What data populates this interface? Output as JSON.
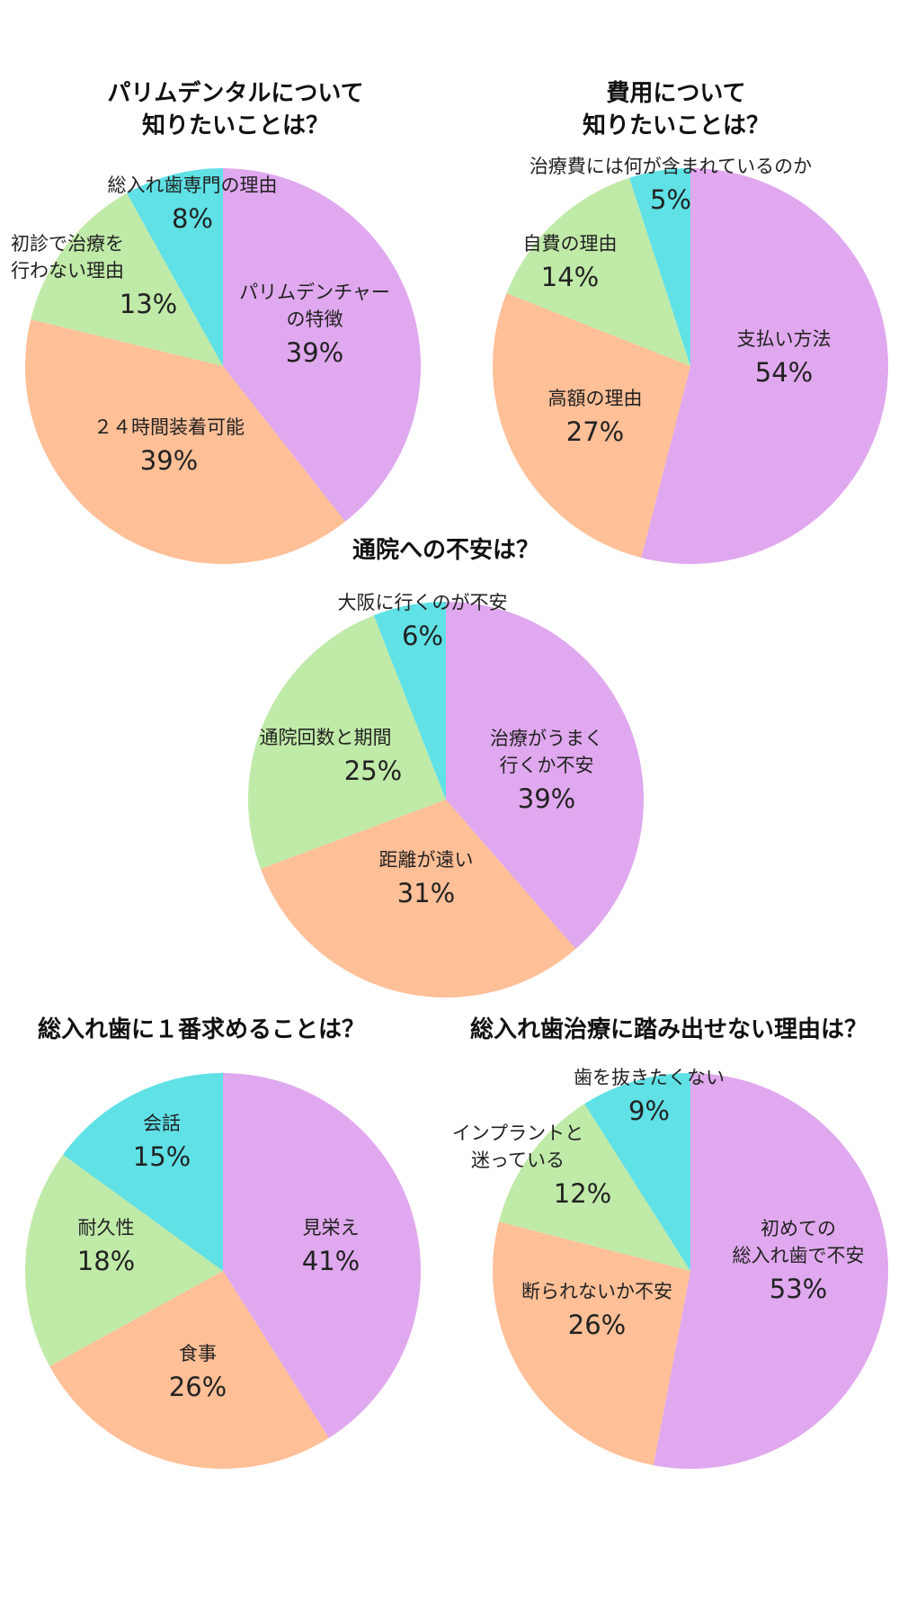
{
  "colors": {
    "purple": "#e0a8ee",
    "orange": "#ffbf97",
    "green": "#c0eaa8",
    "cyan": "#5fe1e6"
  },
  "chart_data": [
    {
      "type": "pie",
      "title": [
        "パリムデンタルについて",
        "知りたいことは？"
      ],
      "slices": [
        {
          "label": [
            "パリムデンチャー",
            "の特徴"
          ],
          "value": 39,
          "pct_label": "39%",
          "color": "#e0a8ee"
        },
        {
          "label": [
            "２４時間装着可能"
          ],
          "value": 39,
          "pct_label": "39%",
          "color": "#ffbf97"
        },
        {
          "label": [
            "初診で治療を",
            "行わない理由"
          ],
          "value": 13,
          "pct_label": "13%",
          "color": "#c0eaa8"
        },
        {
          "label": [
            "総入れ歯専門の理由"
          ],
          "value": 8,
          "pct_label": "8%",
          "color": "#5fe1e6"
        }
      ]
    },
    {
      "type": "pie",
      "title": [
        "費用について",
        "知りたいことは？"
      ],
      "slices": [
        {
          "label": [
            "支払い方法"
          ],
          "value": 54,
          "pct_label": "54%",
          "color": "#e0a8ee"
        },
        {
          "label": [
            "高額の理由"
          ],
          "value": 27,
          "pct_label": "27%",
          "color": "#ffbf97"
        },
        {
          "label": [
            "自費の理由"
          ],
          "value": 14,
          "pct_label": "14%",
          "color": "#c0eaa8"
        },
        {
          "label": [
            "治療費には何が含まれているのか"
          ],
          "value": 5,
          "pct_label": "5%",
          "color": "#5fe1e6"
        }
      ]
    },
    {
      "type": "pie",
      "title": [
        "通院への不安は？"
      ],
      "slices": [
        {
          "label": [
            "治療がうまく",
            "行くか不安"
          ],
          "value": 39,
          "pct_label": "39%",
          "color": "#e0a8ee"
        },
        {
          "label": [
            "距離が遠い"
          ],
          "value": 31,
          "pct_label": "31%",
          "color": "#ffbf97"
        },
        {
          "label": [
            "通院回数と期間"
          ],
          "value": 25,
          "pct_label": "25%",
          "color": "#c0eaa8"
        },
        {
          "label": [
            "大阪に行くのが不安"
          ],
          "value": 6,
          "pct_label": "6%",
          "color": "#5fe1e6"
        }
      ]
    },
    {
      "type": "pie",
      "title": [
        "総入れ歯に１番求めることは？"
      ],
      "slices": [
        {
          "label": [
            "見栄え"
          ],
          "value": 41,
          "pct_label": "41%",
          "color": "#e0a8ee"
        },
        {
          "label": [
            "食事"
          ],
          "value": 26,
          "pct_label": "26%",
          "color": "#ffbf97"
        },
        {
          "label": [
            "耐久性"
          ],
          "value": 18,
          "pct_label": "18%",
          "color": "#c0eaa8"
        },
        {
          "label": [
            "会話"
          ],
          "value": 15,
          "pct_label": "15%",
          "color": "#5fe1e6"
        }
      ]
    },
    {
      "type": "pie",
      "title": [
        "総入れ歯治療に踏み出せない理由は？"
      ],
      "slices": [
        {
          "label": [
            "初めての",
            "総入れ歯で不安"
          ],
          "value": 53,
          "pct_label": "53%",
          "color": "#e0a8ee"
        },
        {
          "label": [
            "断られないか不安"
          ],
          "value": 26,
          "pct_label": "26%",
          "color": "#ffbf97"
        },
        {
          "label": [
            "インプラントと",
            "迷っている"
          ],
          "value": 12,
          "pct_label": "12%",
          "color": "#c0eaa8"
        },
        {
          "label": [
            "歯を抜きたくない"
          ],
          "value": 9,
          "pct_label": "9%",
          "color": "#5fe1e6"
        }
      ]
    }
  ]
}
